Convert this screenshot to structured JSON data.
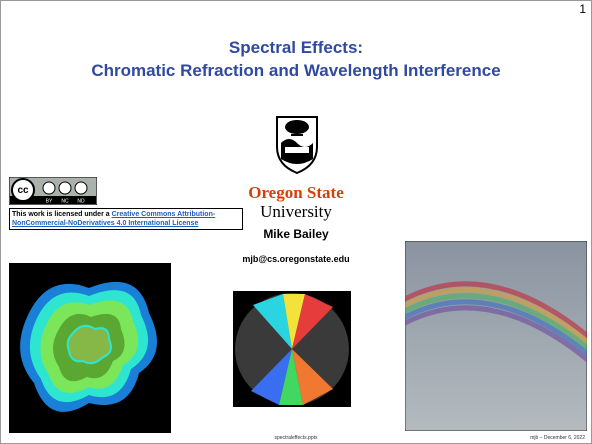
{
  "slide": {
    "number": 1,
    "title": [
      "Spectral Effects:",
      "Chromatic Refraction and Wavelength Interference"
    ],
    "logo": {
      "line1": "Oregon State",
      "line2": "University"
    },
    "author": "Mike Bailey",
    "email": "mjb@cs.oregonstate.edu",
    "license": {
      "badge_terms": [
        "BY",
        "NC",
        "ND"
      ],
      "text": "This work is licensed under a ",
      "link": "Creative Commons Attribution-NonCommercial-NoDerivatives 4.0 International License"
    },
    "footer": {
      "file": "spectraleffects.pptx",
      "credit": "mjb – December 6, 2022"
    }
  }
}
